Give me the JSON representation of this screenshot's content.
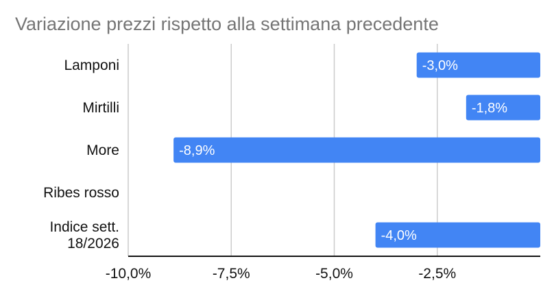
{
  "chart_data": {
    "type": "bar",
    "orientation": "horizontal",
    "title": "Variazione prezzi rispetto alla settimana precedente",
    "categories": [
      "Lamponi",
      "Mirtilli",
      "More",
      "Ribes rosso",
      "Indice sett. 18/2026"
    ],
    "values": [
      -3.0,
      -1.8,
      -8.9,
      0,
      -4.0
    ],
    "data_labels": [
      "-3,0%",
      "-1,8%",
      "-8,9%",
      "",
      "-4,0%"
    ],
    "xlim": [
      -10,
      0
    ],
    "x_ticks": [
      -10,
      -7.5,
      -5,
      -2.5
    ],
    "x_tick_labels": [
      "-10,0%",
      "-7,5%",
      "-5,0%",
      "-2,5%"
    ],
    "xlabel": "",
    "ylabel": "",
    "grid": true,
    "legend": "none",
    "bar_color": "#4285f4"
  }
}
